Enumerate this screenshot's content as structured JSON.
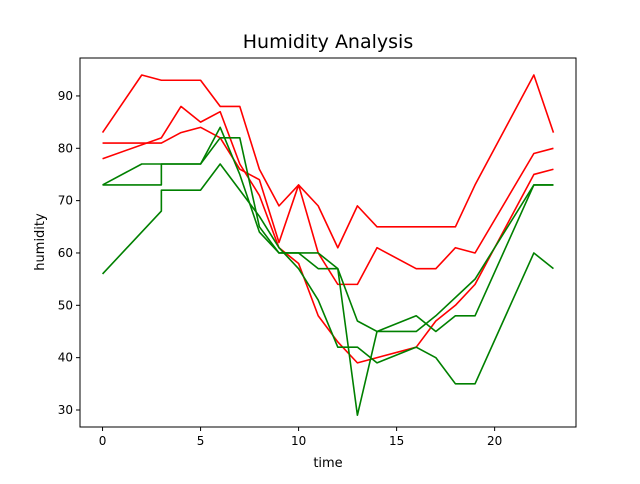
{
  "chart_data": {
    "type": "line",
    "title": "Humidity Analysis",
    "xlabel": "time",
    "ylabel": "humidity",
    "xlim": [
      -1.15,
      24.15
    ],
    "ylim": [
      26.75,
      97.25
    ],
    "x_ticks": [
      0,
      5,
      10,
      15,
      20
    ],
    "y_ticks": [
      30,
      40,
      50,
      60,
      70,
      80,
      90
    ],
    "grid": false,
    "legend": "none",
    "series": [
      {
        "color": "#ff0000",
        "points": [
          [
            0,
            83
          ],
          [
            2,
            94
          ],
          [
            3,
            93
          ],
          [
            5,
            93
          ],
          [
            6,
            88
          ],
          [
            7,
            88
          ],
          [
            8,
            76
          ],
          [
            9,
            69
          ],
          [
            10,
            73
          ],
          [
            11,
            69
          ],
          [
            12,
            61
          ],
          [
            13,
            69
          ],
          [
            14,
            65
          ],
          [
            18,
            65
          ],
          [
            19,
            73
          ],
          [
            22,
            94
          ],
          [
            23,
            83
          ]
        ]
      },
      {
        "color": "#ff0000",
        "points": [
          [
            0,
            81
          ],
          [
            3,
            81
          ],
          [
            4,
            83
          ],
          [
            5,
            84
          ],
          [
            6,
            82
          ],
          [
            7,
            76
          ],
          [
            8,
            74
          ],
          [
            9,
            62
          ],
          [
            10,
            73
          ],
          [
            11,
            60
          ],
          [
            12,
            54
          ],
          [
            13,
            54
          ],
          [
            14,
            61
          ],
          [
            16,
            57
          ],
          [
            17,
            57
          ],
          [
            18,
            61
          ],
          [
            19,
            60
          ],
          [
            22,
            79
          ],
          [
            23,
            80
          ]
        ]
      },
      {
        "color": "#ff0000",
        "points": [
          [
            0,
            78
          ],
          [
            3,
            82
          ],
          [
            4,
            88
          ],
          [
            5,
            85
          ],
          [
            6,
            87
          ],
          [
            7,
            77
          ],
          [
            8,
            71
          ],
          [
            9,
            61
          ],
          [
            10,
            58
          ],
          [
            11,
            48
          ],
          [
            12,
            43
          ],
          [
            13,
            39
          ],
          [
            16,
            42
          ],
          [
            17,
            47
          ],
          [
            18,
            50
          ],
          [
            19,
            54
          ],
          [
            22,
            75
          ],
          [
            23,
            76
          ]
        ]
      },
      {
        "color": "#008000",
        "points": [
          [
            0,
            73
          ],
          [
            3,
            73
          ],
          [
            3,
            77
          ],
          [
            5,
            77
          ],
          [
            6,
            84
          ],
          [
            7,
            75
          ],
          [
            8,
            64
          ],
          [
            9,
            60
          ],
          [
            11,
            60
          ],
          [
            12,
            57
          ],
          [
            13,
            47
          ],
          [
            14,
            45
          ],
          [
            16,
            48
          ],
          [
            17,
            45
          ],
          [
            18,
            48
          ],
          [
            19,
            48
          ],
          [
            22,
            73
          ],
          [
            23,
            73
          ]
        ]
      },
      {
        "color": "#008000",
        "points": [
          [
            0,
            73
          ],
          [
            2,
            77
          ],
          [
            5,
            77
          ],
          [
            6,
            82
          ],
          [
            7,
            82
          ],
          [
            8,
            65
          ],
          [
            9,
            60
          ],
          [
            10,
            60
          ],
          [
            11,
            57
          ],
          [
            12,
            57
          ],
          [
            13,
            29
          ],
          [
            14,
            45
          ],
          [
            16,
            45
          ],
          [
            17,
            48
          ],
          [
            19,
            55
          ],
          [
            22,
            73
          ],
          [
            23,
            73
          ]
        ]
      },
      {
        "color": "#008000",
        "points": [
          [
            0,
            56
          ],
          [
            3,
            68
          ],
          [
            3,
            72
          ],
          [
            5,
            72
          ],
          [
            6,
            77
          ],
          [
            7,
            72
          ],
          [
            8,
            67
          ],
          [
            9,
            61
          ],
          [
            10,
            57
          ],
          [
            11,
            51
          ],
          [
            12,
            42
          ],
          [
            13,
            42
          ],
          [
            14,
            39
          ],
          [
            16,
            42
          ],
          [
            17,
            40
          ],
          [
            18,
            35
          ],
          [
            19,
            35
          ],
          [
            22,
            60
          ],
          [
            23,
            57
          ]
        ]
      }
    ]
  }
}
